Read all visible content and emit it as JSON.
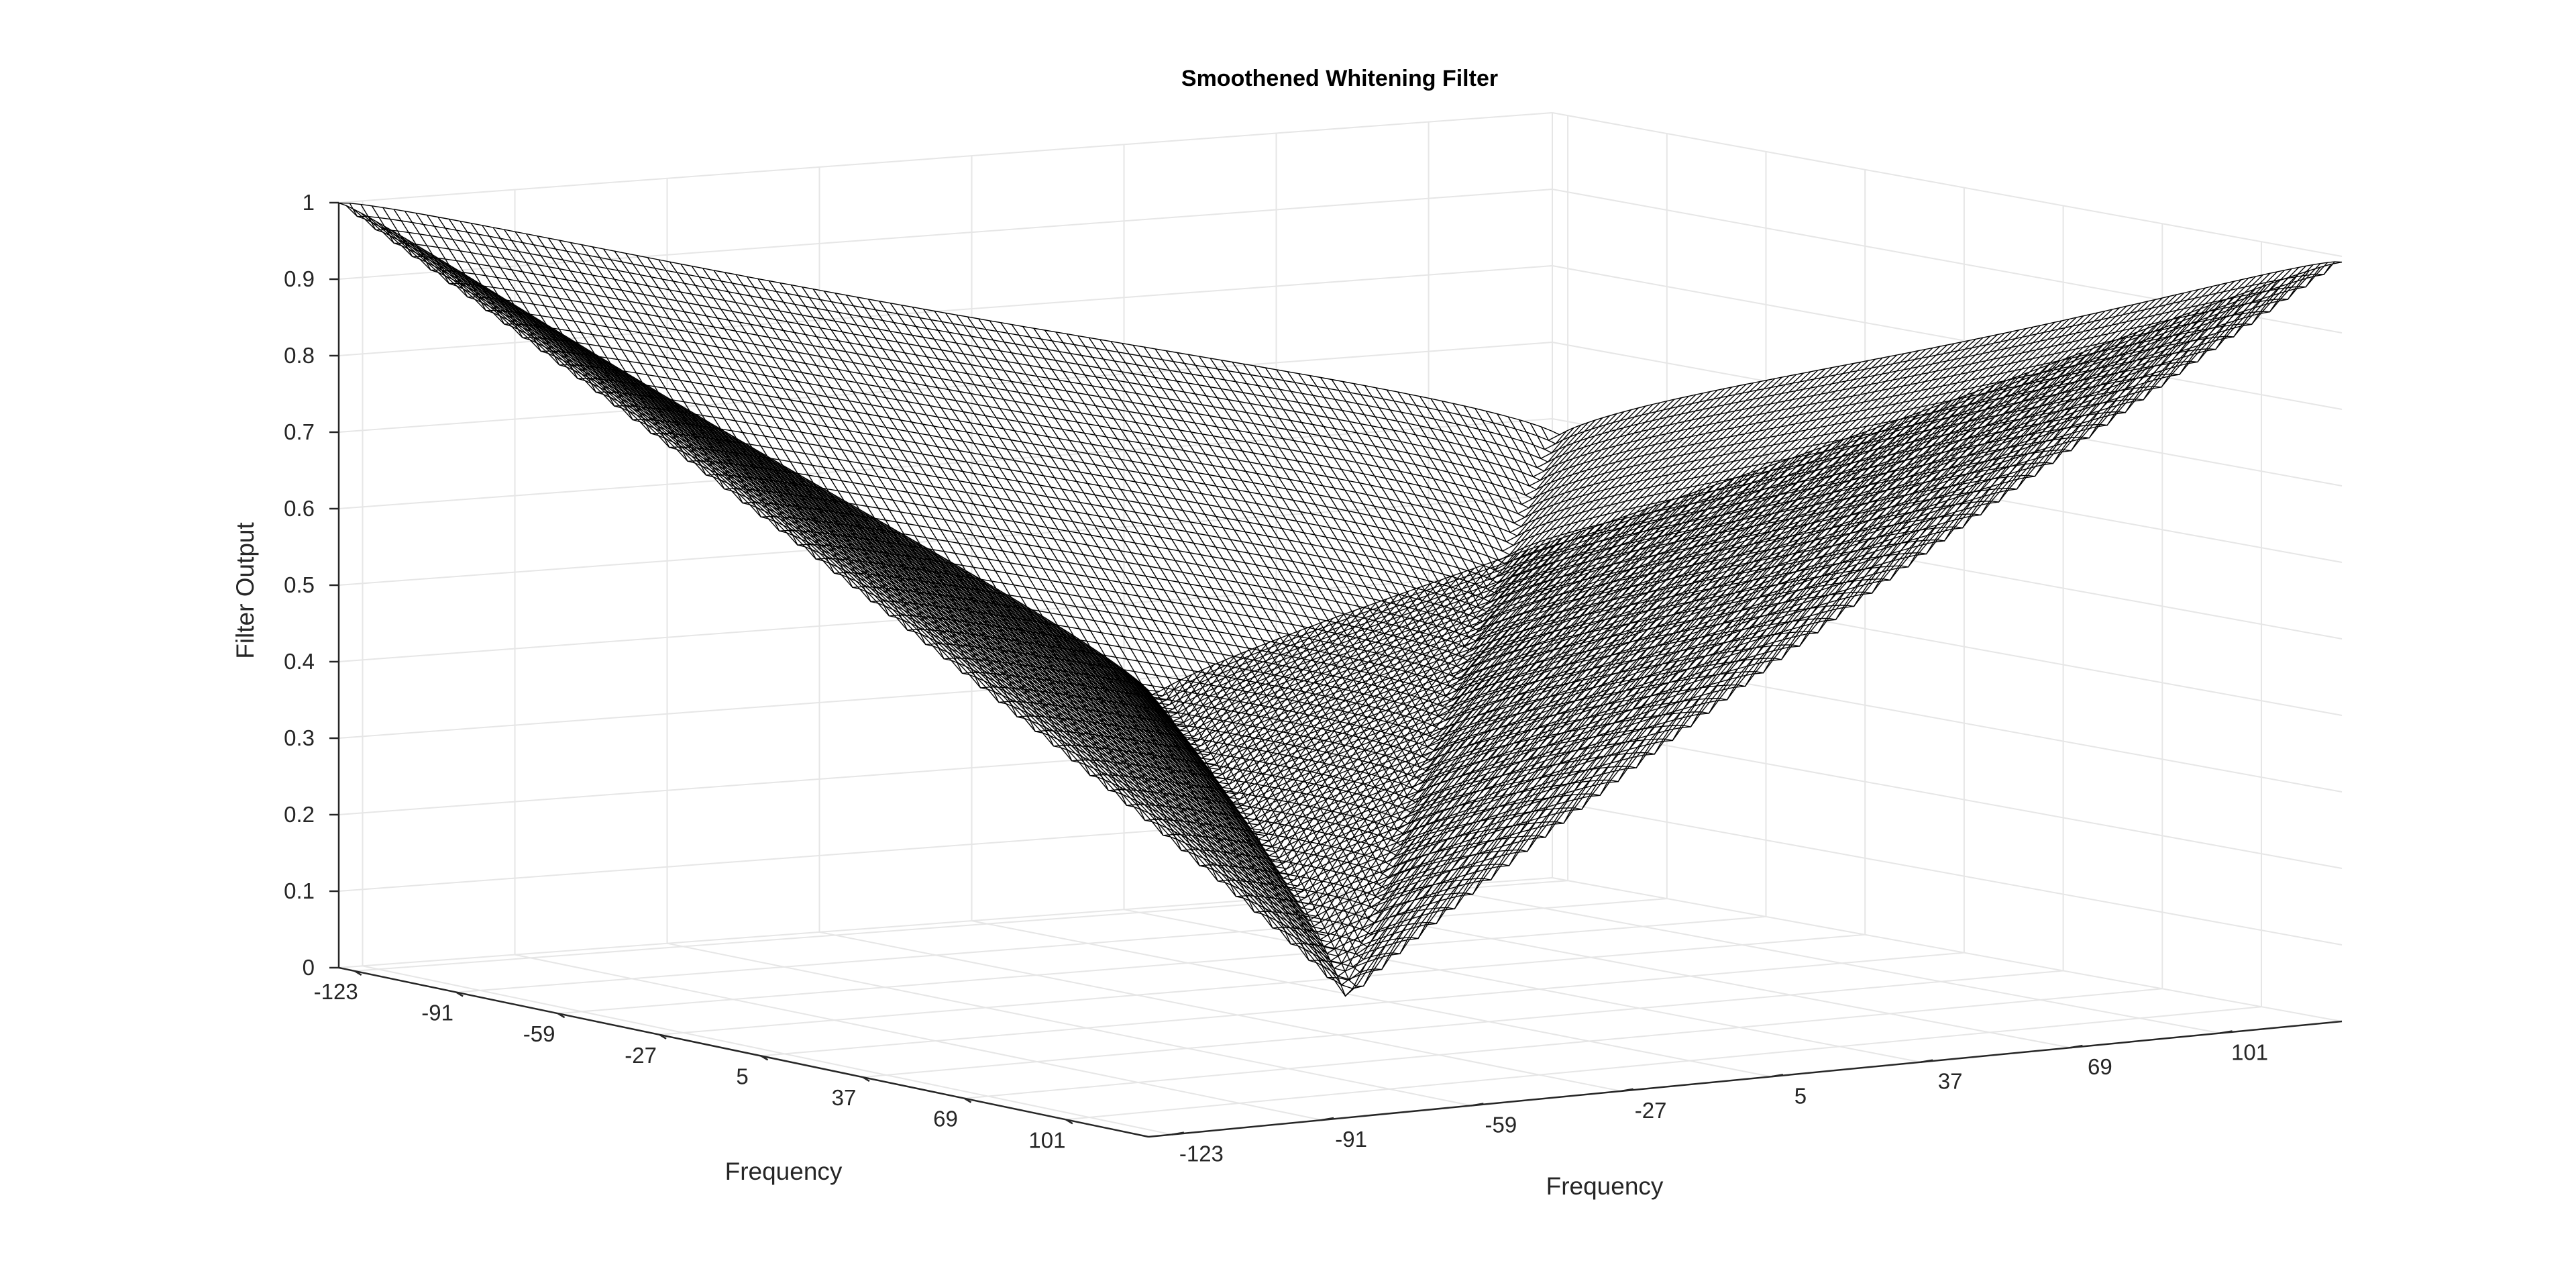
{
  "chart_data": {
    "type": "surface",
    "title": "Smoothened Whitening Filter",
    "xlabel": "Frequency",
    "ylabel": "Frequency",
    "zlabel": "Filter Output",
    "x_ticks": [
      "-123",
      "-91",
      "-59",
      "-27",
      "5",
      "37",
      "69",
      "101"
    ],
    "y_ticks": [
      "-123",
      "-91",
      "-59",
      "-27",
      "5",
      "37",
      "69",
      "101"
    ],
    "z_ticks": [
      "0",
      "0.1",
      "0.2",
      "0.3",
      "0.4",
      "0.5",
      "0.6",
      "0.7",
      "0.8",
      "0.9",
      "1"
    ],
    "xlim": [
      -128,
      127
    ],
    "ylim": [
      -128,
      127
    ],
    "zlim": [
      0,
      1
    ],
    "grid": true,
    "mesh_color": "#000000",
    "face_color": "#ffffff",
    "grid_color": "#e6e6e6",
    "axis_color": "#262626",
    "corner_values": {
      "x_min_y_min": 1.0,
      "x_max_y_max": 1.0,
      "x_min_y_max": 0.58,
      "x_max_y_min": 0.58,
      "x_0_y_0": 0.0
    }
  }
}
